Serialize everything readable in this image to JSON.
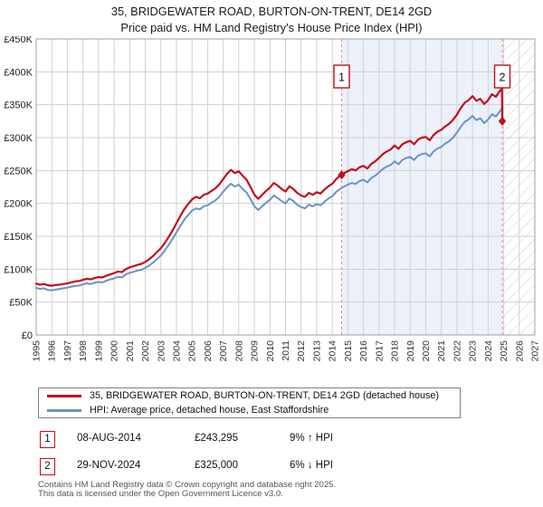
{
  "title": {
    "line1": "35, BRIDGEWATER ROAD, BURTON-ON-TRENT, DE14 2GD",
    "line2": "Price paid vs. HM Land Registry's House Price Index (HPI)"
  },
  "chart_data": {
    "type": "line",
    "y_unit": "thousand GBP",
    "x_axis": {
      "min": 1995,
      "max": 2027,
      "tick_labels": [
        "1995",
        "1996",
        "1997",
        "1998",
        "1999",
        "2000",
        "2001",
        "2002",
        "2003",
        "2004",
        "2005",
        "2006",
        "2007",
        "2008",
        "2009",
        "2010",
        "2011",
        "2012",
        "2013",
        "2014",
        "2015",
        "2016",
        "2017",
        "2018",
        "2019",
        "2020",
        "2021",
        "2022",
        "2023",
        "2024",
        "2025",
        "2026",
        "2027"
      ]
    },
    "y_axis": {
      "max_k": 450,
      "tick_step_k": 50,
      "tick_labels": [
        "£0",
        "£50K",
        "£100K",
        "£150K",
        "£200K",
        "£250K",
        "£300K",
        "£350K",
        "£400K",
        "£450K"
      ]
    },
    "colors": {
      "price": "#c30d1e",
      "hpi": "#6b93c4",
      "grid": "#d0d0d0",
      "border": "#a0a0a0",
      "event_line": "#e88b8b",
      "shade": "#ecf1fa",
      "hatch": "#cfcfcf"
    },
    "series": [
      {
        "name": "35, BRIDGEWATER ROAD, BURTON-ON-TRENT, DE14 2GD (detached house)",
        "data_name": "price-paid-line",
        "color": "#c30d1e",
        "width": 2.2,
        "x_start": 1995,
        "x_step": 0.25,
        "values_k": [
          78,
          76.5,
          77.5,
          75.5,
          75,
          76,
          76.5,
          77.5,
          78.5,
          80,
          81.5,
          82,
          84,
          85.5,
          84.5,
          86.5,
          88,
          87.5,
          90,
          92,
          94,
          96.5,
          95.5,
          100,
          103,
          104.5,
          106.5,
          108,
          111,
          115,
          120,
          126,
          132,
          140,
          149,
          159,
          170,
          181,
          191,
          199,
          206,
          210,
          208,
          213,
          215,
          219,
          223,
          229,
          237,
          245,
          251,
          246,
          249,
          242,
          236,
          225,
          213,
          207,
          213,
          219,
          224,
          231,
          227,
          222,
          218,
          226,
          222,
          216,
          212,
          210,
          216,
          213,
          217,
          215,
          221,
          226,
          230,
          237,
          242,
          246,
          249,
          252,
          250,
          255,
          257,
          253,
          260,
          264,
          269,
          275,
          279,
          282,
          288,
          283,
          290,
          293,
          295,
          290,
          297,
          300,
          301,
          296,
          304,
          309,
          312,
          317,
          321,
          327,
          335,
          345,
          353,
          357,
          363,
          356,
          359,
          351,
          357,
          366,
          362,
          371
        ],
        "tail_points_k": [
          [
            2024.83,
            373
          ],
          [
            2024.89,
            375.5
          ],
          [
            2024.91,
            325
          ]
        ]
      },
      {
        "name": "HPI: Average price, detached house, East Staffordshire",
        "data_name": "hpi-line",
        "color": "#6b93c4",
        "width": 2,
        "x_start": 1995,
        "x_step": 0.25,
        "values_k": [
          71.5,
          70,
          71,
          68.5,
          68,
          69,
          70,
          71,
          72,
          73.5,
          74.5,
          75,
          77,
          78.5,
          77.5,
          79.5,
          80.5,
          80,
          82.5,
          84.5,
          86,
          88.5,
          87.5,
          92,
          94.5,
          96,
          98,
          99,
          102,
          105.5,
          110,
          115.5,
          121,
          128.5,
          137,
          146,
          156,
          166,
          175,
          182.5,
          189,
          192.5,
          191,
          195.5,
          197,
          201,
          204.5,
          210,
          217.5,
          224.5,
          230,
          225.5,
          228.5,
          222,
          216.5,
          206.5,
          195.5,
          190,
          195.5,
          201,
          205.5,
          212,
          208,
          203.5,
          200,
          207.5,
          203.5,
          198,
          194.5,
          192.5,
          198,
          195.5,
          199,
          197,
          202.5,
          207.5,
          211,
          217.5,
          222,
          225.5,
          228.5,
          231,
          229.5,
          234,
          236,
          232,
          238.5,
          242,
          247,
          252.5,
          256,
          258.5,
          264,
          259.5,
          266,
          269,
          270.5,
          266,
          272.5,
          275,
          276,
          271.5,
          279,
          283.5,
          286,
          291,
          294.5,
          300,
          307.5,
          316.5,
          324,
          327.5,
          333,
          326.5,
          329.5,
          322,
          327.5,
          335.5,
          332,
          340
        ],
        "tail_points_k": [
          [
            2024.83,
            342
          ],
          [
            2024.91,
            345.5
          ]
        ]
      }
    ],
    "sale_points": [
      {
        "label": "1",
        "x": 2014.6,
        "price": 243295
      },
      {
        "label": "2",
        "x": 2024.91,
        "price": 325000
      }
    ],
    "shaded_region": {
      "from": 2014.6,
      "to": 2024.91
    },
    "hatched_region": {
      "from": 2024.91,
      "to": 2027
    }
  },
  "legend": {
    "items": [
      {
        "label": "35, BRIDGEWATER ROAD, BURTON-ON-TRENT, DE14 2GD (detached house)"
      },
      {
        "label": "HPI: Average price, detached house, East Staffordshire"
      }
    ]
  },
  "annotations": [
    {
      "num": "1",
      "date": "08-AUG-2014",
      "price": "£243,295",
      "hpi_note": "9% ↑ HPI"
    },
    {
      "num": "2",
      "date": "29-NOV-2024",
      "price": "£325,000",
      "hpi_note": "6% ↓ HPI"
    }
  ],
  "footer": {
    "line1": "Contains HM Land Registry data © Crown copyright and database right 2025.",
    "line2": "This data is licensed under the Open Government Licence v3.0."
  }
}
